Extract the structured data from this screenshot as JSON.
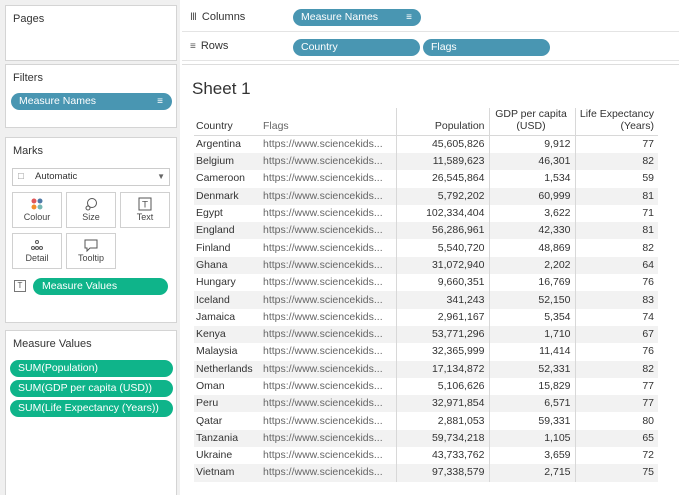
{
  "panels": {
    "pages": {
      "title": "Pages"
    },
    "filters": {
      "title": "Filters",
      "pill": "Measure Names"
    },
    "marks": {
      "title": "Marks",
      "type": "Automatic",
      "buttons": {
        "colour": "Colour",
        "size": "Size",
        "text": "Text",
        "detail": "Detail",
        "tooltip": "Tooltip"
      },
      "text_pill": "Measure Values"
    },
    "measure_values": {
      "title": "Measure Values",
      "pills": [
        "SUM(Population)",
        "SUM(GDP per capita (USD))",
        "SUM(Life Expectancy (Years))"
      ]
    }
  },
  "shelves": {
    "columns": {
      "label": "Columns",
      "pill": "Measure Names"
    },
    "rows": {
      "label": "Rows",
      "pills": [
        "Country",
        "Flags"
      ]
    }
  },
  "sheet": {
    "title": "Sheet 1",
    "headers": {
      "country": "Country",
      "flags": "Flags",
      "population": "Population",
      "gdp": "GDP per capita (USD)",
      "life": "Life Expectancy (Years)"
    },
    "rows": [
      {
        "country": "Argentina",
        "flags": "https://www.sciencekids...",
        "population": "45,605,826",
        "gdp": "9,912",
        "life": "77"
      },
      {
        "country": "Belgium",
        "flags": "https://www.sciencekids...",
        "population": "11,589,623",
        "gdp": "46,301",
        "life": "82"
      },
      {
        "country": "Cameroon",
        "flags": "https://www.sciencekids...",
        "population": "26,545,864",
        "gdp": "1,534",
        "life": "59"
      },
      {
        "country": "Denmark",
        "flags": "https://www.sciencekids...",
        "population": "5,792,202",
        "gdp": "60,999",
        "life": "81"
      },
      {
        "country": "Egypt",
        "flags": "https://www.sciencekids...",
        "population": "102,334,404",
        "gdp": "3,622",
        "life": "71"
      },
      {
        "country": "England",
        "flags": "https://www.sciencekids...",
        "population": "56,286,961",
        "gdp": "42,330",
        "life": "81"
      },
      {
        "country": "Finland",
        "flags": "https://www.sciencekids...",
        "population": "5,540,720",
        "gdp": "48,869",
        "life": "82"
      },
      {
        "country": "Ghana",
        "flags": "https://www.sciencekids...",
        "population": "31,072,940",
        "gdp": "2,202",
        "life": "64"
      },
      {
        "country": "Hungary",
        "flags": "https://www.sciencekids...",
        "population": "9,660,351",
        "gdp": "16,769",
        "life": "76"
      },
      {
        "country": "Iceland",
        "flags": "https://www.sciencekids...",
        "population": "341,243",
        "gdp": "52,150",
        "life": "83"
      },
      {
        "country": "Jamaica",
        "flags": "https://www.sciencekids...",
        "population": "2,961,167",
        "gdp": "5,354",
        "life": "74"
      },
      {
        "country": "Kenya",
        "flags": "https://www.sciencekids...",
        "population": "53,771,296",
        "gdp": "1,710",
        "life": "67"
      },
      {
        "country": "Malaysia",
        "flags": "https://www.sciencekids...",
        "population": "32,365,999",
        "gdp": "11,414",
        "life": "76"
      },
      {
        "country": "Netherlands",
        "flags": "https://www.sciencekids...",
        "population": "17,134,872",
        "gdp": "52,331",
        "life": "82"
      },
      {
        "country": "Oman",
        "flags": "https://www.sciencekids...",
        "population": "5,106,626",
        "gdp": "15,829",
        "life": "77"
      },
      {
        "country": "Peru",
        "flags": "https://www.sciencekids...",
        "population": "32,971,854",
        "gdp": "6,571",
        "life": "77"
      },
      {
        "country": "Qatar",
        "flags": "https://www.sciencekids...",
        "population": "2,881,053",
        "gdp": "59,331",
        "life": "80"
      },
      {
        "country": "Tanzania",
        "flags": "https://www.sciencekids...",
        "population": "59,734,218",
        "gdp": "1,105",
        "life": "65"
      },
      {
        "country": "Ukraine",
        "flags": "https://www.sciencekids...",
        "population": "43,733,762",
        "gdp": "3,659",
        "life": "72"
      },
      {
        "country": "Vietnam",
        "flags": "https://www.sciencekids...",
        "population": "97,338,579",
        "gdp": "2,715",
        "life": "75"
      }
    ]
  },
  "colors": {
    "blue_pill": "#4996b2",
    "green_pill": "#0fb48a"
  }
}
